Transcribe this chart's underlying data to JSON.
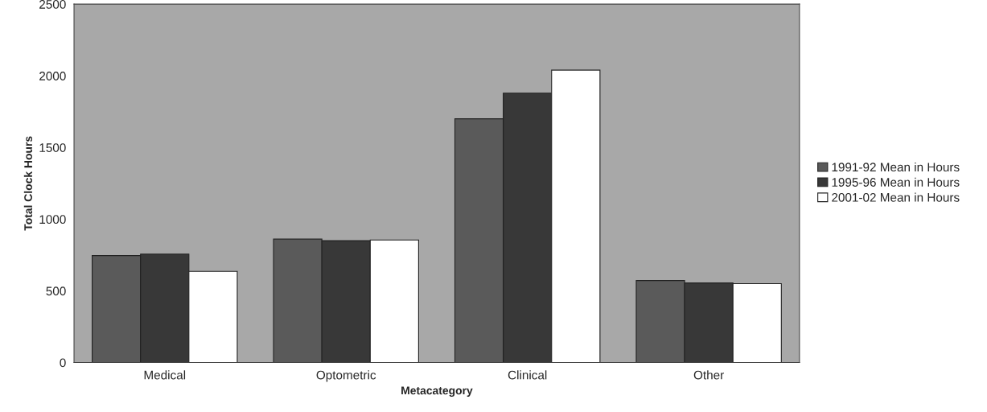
{
  "chart_data": {
    "type": "bar",
    "xlabel": "Metacategory",
    "ylabel": "Total Clock Hours",
    "categories": [
      "Medical",
      "Optometric",
      "Clinical",
      "Other"
    ],
    "series": [
      {
        "name": "1991-92 Mean in Hours",
        "color": "#5a5a5a",
        "values": [
          746,
          861,
          1700,
          572
        ]
      },
      {
        "name": "1995-96 Mean in Hours",
        "color": "#383838",
        "values": [
          757,
          850,
          1879,
          555
        ]
      },
      {
        "name": "2001-02 Mean in Hours",
        "color": "#ffffff",
        "values": [
          636,
          855,
          2040,
          550
        ]
      }
    ],
    "ylim": [
      0,
      2500
    ],
    "yticks": [
      0,
      500,
      1000,
      1500,
      2000,
      2500
    ],
    "grid": false,
    "legend": "right"
  }
}
